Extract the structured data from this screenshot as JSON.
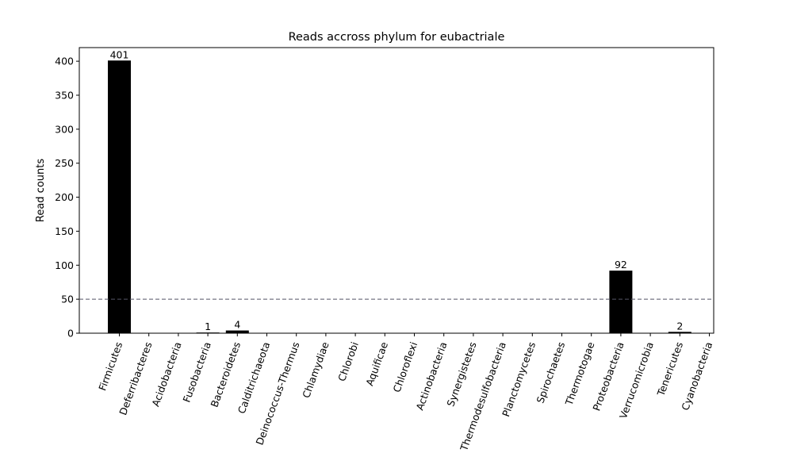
{
  "chart_data": {
    "type": "bar",
    "title": "Reads accross phylum for eubactriale",
    "xlabel": "",
    "ylabel": "Read counts",
    "ylim": [
      0,
      420
    ],
    "yticks": [
      0,
      50,
      100,
      150,
      200,
      250,
      300,
      350,
      400
    ],
    "categories": [
      "Firmicutes",
      "Deferribacteres",
      "Acidobacteria",
      "Fusobacteria",
      "Bacteroidetes",
      "Calditrichaeota",
      "Deinococcus-Thermus",
      "Chlamydiae",
      "Chlorobi",
      "Aquificae",
      "Chloroflexi",
      "Actinobacteria",
      "Synergistetes",
      "Thermodesulfobacteria",
      "Planctomycetes",
      "Spirochaetes",
      "Thermotogae",
      "Proteobacteria",
      "Verrucomicrobia",
      "Tenericutes",
      "Cyanobacteria"
    ],
    "values": [
      401,
      0,
      0,
      1,
      4,
      0,
      0,
      0,
      0,
      0,
      0,
      0,
      0,
      0,
      0,
      0,
      0,
      92,
      0,
      2,
      0
    ],
    "threshold": 50,
    "bar_color": "#000000",
    "threshold_color": "#555566",
    "grid": false,
    "tick_rotation": -70
  }
}
